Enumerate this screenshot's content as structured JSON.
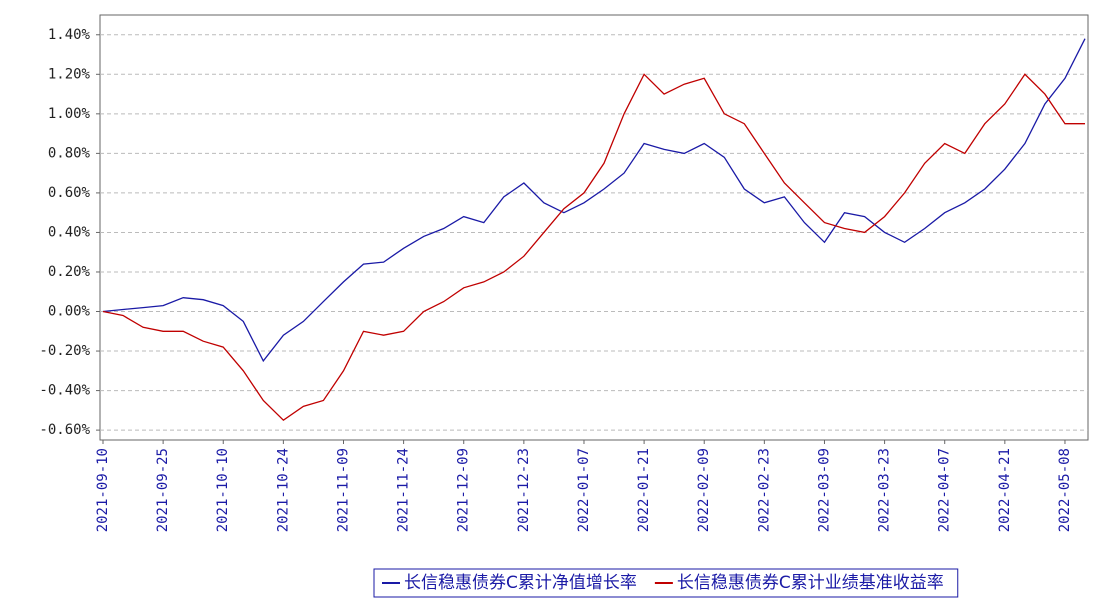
{
  "chart_data": {
    "type": "line",
    "categories": [
      "2021-09-10",
      null,
      null,
      "2021-09-25",
      null,
      null,
      "2021-10-10",
      null,
      null,
      "2021-10-24",
      null,
      null,
      "2021-11-09",
      null,
      null,
      "2021-11-24",
      null,
      null,
      "2021-12-09",
      null,
      null,
      "2021-12-23",
      null,
      null,
      "2022-01-07",
      null,
      null,
      "2022-01-21",
      null,
      null,
      "2022-02-09",
      null,
      null,
      "2022-02-23",
      null,
      null,
      "2022-03-09",
      null,
      null,
      "2022-03-23",
      null,
      null,
      "2022-04-07",
      null,
      null,
      "2022-04-21",
      null,
      null,
      "2022-05-08",
      null
    ],
    "series": [
      {
        "name": "长信稳惠债券C累计净值增长率",
        "color": "#1a1aa6",
        "values": [
          0,
          0.01,
          0.02,
          0.03,
          0.07,
          0.06,
          0.03,
          -0.05,
          -0.25,
          -0.12,
          -0.05,
          0.05,
          0.15,
          0.24,
          0.25,
          0.32,
          0.38,
          0.42,
          0.48,
          0.45,
          0.58,
          0.65,
          0.55,
          0.5,
          0.55,
          0.62,
          0.7,
          0.85,
          0.82,
          0.8,
          0.85,
          0.78,
          0.62,
          0.55,
          0.58,
          0.45,
          0.35,
          0.5,
          0.48,
          0.4,
          0.35,
          0.42,
          0.5,
          0.55,
          0.62,
          0.72,
          0.85,
          1.05,
          1.18,
          1.38
        ]
      },
      {
        "name": "长信稳惠债券C累计业绩基准收益率",
        "color": "#c00000",
        "values": [
          0,
          -0.02,
          -0.08,
          -0.1,
          -0.1,
          -0.15,
          -0.18,
          -0.3,
          -0.45,
          -0.55,
          -0.48,
          -0.45,
          -0.3,
          -0.1,
          -0.12,
          -0.1,
          0.0,
          0.05,
          0.12,
          0.15,
          0.2,
          0.28,
          0.4,
          0.52,
          0.6,
          0.75,
          1.0,
          1.2,
          1.1,
          1.15,
          1.18,
          1.0,
          0.95,
          0.8,
          0.65,
          0.55,
          0.45,
          0.42,
          0.4,
          0.48,
          0.6,
          0.75,
          0.85,
          0.8,
          0.95,
          1.05,
          1.2,
          1.1,
          0.95,
          0.95
        ]
      }
    ],
    "ylim": [
      -0.65,
      1.5
    ],
    "yticks": [
      {
        "value": -0.6,
        "label": "-0.60%"
      },
      {
        "value": -0.4,
        "label": "-0.40%"
      },
      {
        "value": -0.2,
        "label": "-0.20%"
      },
      {
        "value": 0,
        "label": "0.00%"
      },
      {
        "value": 0.2,
        "label": "0.20%"
      },
      {
        "value": 0.4,
        "label": "0.40%"
      },
      {
        "value": 0.6,
        "label": "0.60%"
      },
      {
        "value": 0.8,
        "label": "0.80%"
      },
      {
        "value": 1.0,
        "label": "1.00%"
      },
      {
        "value": 1.2,
        "label": "1.20%"
      },
      {
        "value": 1.4,
        "label": "1.40%"
      }
    ],
    "grid": true,
    "legend": "bottom-right"
  }
}
